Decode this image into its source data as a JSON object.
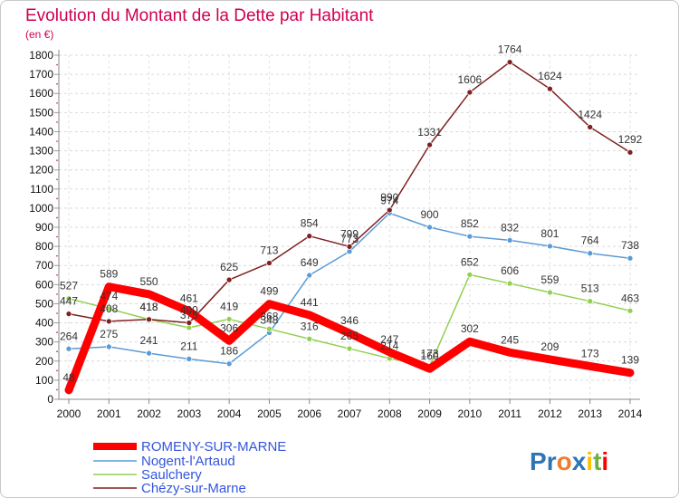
{
  "chart_data": {
    "type": "line",
    "title": "Evolution du Montant de la Dette par Habitant",
    "ylabel": "(en €)",
    "xlabel": "",
    "ylim": [
      0,
      1800
    ],
    "ytick_step": 100,
    "grid": true,
    "legend_position": "bottom-left",
    "x": [
      "2000",
      "2001",
      "2002",
      "2003",
      "2004",
      "2005",
      "2006",
      "2007",
      "2008",
      "2009",
      "2010",
      "2011",
      "2012",
      "2013",
      "2014"
    ],
    "series": [
      {
        "name": "ROMENY-SUR-MARNE",
        "color": "#ff0000",
        "values": [
          48,
          589,
          550,
          461,
          306,
          499,
          441,
          346,
          247,
          160,
          302,
          245,
          209,
          173,
          139
        ],
        "labels": [
          "48",
          "589",
          "550",
          "461",
          "306",
          "499",
          "441",
          "346",
          "247",
          "160",
          "302",
          "245",
          "209",
          "173",
          "139"
        ]
      },
      {
        "name": "Nogent-l'Artaud",
        "color": "#5b9bd5",
        "values": [
          264,
          275,
          241,
          211,
          186,
          348,
          649,
          773,
          974,
          900,
          852,
          832,
          801,
          764,
          738
        ],
        "labels": [
          "264",
          "275",
          "241",
          "211",
          "186",
          "348",
          "649",
          "773",
          "974",
          "900",
          "852",
          "832",
          "801",
          "764",
          "738"
        ]
      },
      {
        "name": "Saulchery",
        "color": "#92d050",
        "values": [
          527,
          474,
          418,
          375,
          419,
          368,
          316,
          265,
          214,
          173,
          652,
          606,
          559,
          513,
          463
        ],
        "labels": [
          "527",
          "474",
          "418",
          "375",
          "419",
          "368",
          "316",
          "265",
          "214",
          "173",
          "652",
          "606",
          "559",
          "513",
          "463"
        ]
      },
      {
        "name": "Chézy-sur-Marne",
        "color": "#7f2020",
        "values": [
          447,
          408,
          418,
          400,
          625,
          713,
          854,
          799,
          990,
          1331,
          1606,
          1764,
          1624,
          1424,
          1292
        ],
        "labels": [
          "447",
          "408",
          "418",
          "400",
          "625",
          "713",
          "854",
          "799",
          "990",
          "1331",
          "1606",
          "1764",
          "1624",
          "1424",
          "1292"
        ]
      }
    ]
  },
  "logo": {
    "text": "Proxiti",
    "letters": [
      {
        "ch": "P",
        "color": "#2e75b6"
      },
      {
        "ch": "r",
        "color": "#2e75b6"
      },
      {
        "ch": "o",
        "color": "#ed7d31"
      },
      {
        "ch": "x",
        "color": "#2e75b6"
      },
      {
        "ch": "i",
        "color": "#ffc000"
      },
      {
        "ch": "t",
        "color": "#70ad47"
      },
      {
        "ch": "i",
        "color": "#ff0000"
      }
    ]
  }
}
